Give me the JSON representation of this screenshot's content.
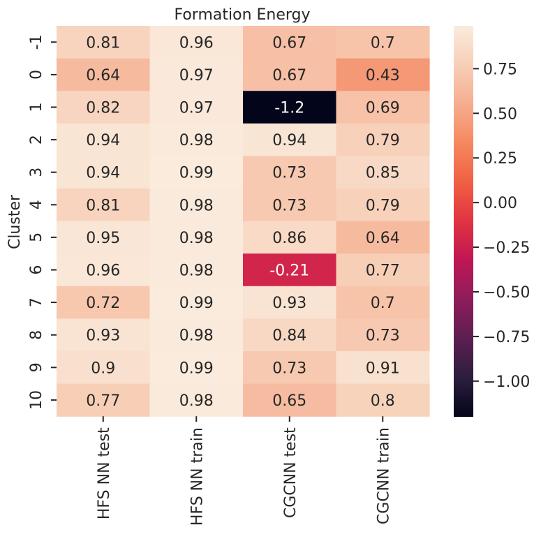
{
  "chart_data": {
    "type": "heatmap",
    "title": "Formation Energy",
    "ylabel": "Cluster",
    "xlabel": "",
    "columns": [
      "HFS NN test",
      "HFS NN train",
      "CGCNN test",
      "CGCNN train"
    ],
    "rows": [
      "-1",
      "0",
      "1",
      "2",
      "3",
      "4",
      "5",
      "6",
      "7",
      "8",
      "9",
      "10"
    ],
    "values": [
      [
        0.81,
        0.96,
        0.67,
        0.7
      ],
      [
        0.64,
        0.97,
        0.67,
        0.43
      ],
      [
        0.82,
        0.97,
        -1.2,
        0.69
      ],
      [
        0.94,
        0.98,
        0.94,
        0.79
      ],
      [
        0.94,
        0.99,
        0.73,
        0.85
      ],
      [
        0.81,
        0.98,
        0.73,
        0.79
      ],
      [
        0.95,
        0.98,
        0.86,
        0.64
      ],
      [
        0.96,
        0.98,
        -0.21,
        0.77
      ],
      [
        0.72,
        0.99,
        0.93,
        0.7
      ],
      [
        0.93,
        0.98,
        0.84,
        0.73
      ],
      [
        0.9,
        0.99,
        0.73,
        0.91
      ],
      [
        0.77,
        0.98,
        0.65,
        0.8
      ]
    ],
    "labels": [
      [
        "0.81",
        "0.96",
        "0.67",
        "0.7"
      ],
      [
        "0.64",
        "0.97",
        "0.67",
        "0.43"
      ],
      [
        "0.82",
        "0.97",
        "-1.2",
        "0.69"
      ],
      [
        "0.94",
        "0.98",
        "0.94",
        "0.79"
      ],
      [
        "0.94",
        "0.99",
        "0.73",
        "0.85"
      ],
      [
        "0.81",
        "0.98",
        "0.73",
        "0.79"
      ],
      [
        "0.95",
        "0.98",
        "0.86",
        "0.64"
      ],
      [
        "0.96",
        "0.98",
        "-0.21",
        "0.77"
      ],
      [
        "0.72",
        "0.99",
        "0.93",
        "0.7"
      ],
      [
        "0.93",
        "0.98",
        "0.84",
        "0.73"
      ],
      [
        "0.9",
        "0.99",
        "0.73",
        "0.91"
      ],
      [
        "0.77",
        "0.98",
        "0.65",
        "0.8"
      ]
    ],
    "vmin": -1.2,
    "vmax": 0.99,
    "colormap": "rocket",
    "colorbar": {
      "ticks": [
        0.75,
        0.5,
        0.25,
        0.0,
        -0.25,
        -0.5,
        -0.75,
        -1.0
      ],
      "tick_labels": [
        "0.75",
        "0.50",
        "0.25",
        "0.00",
        "−0.25",
        "−0.50",
        "−0.75",
        "−1.00"
      ]
    }
  }
}
